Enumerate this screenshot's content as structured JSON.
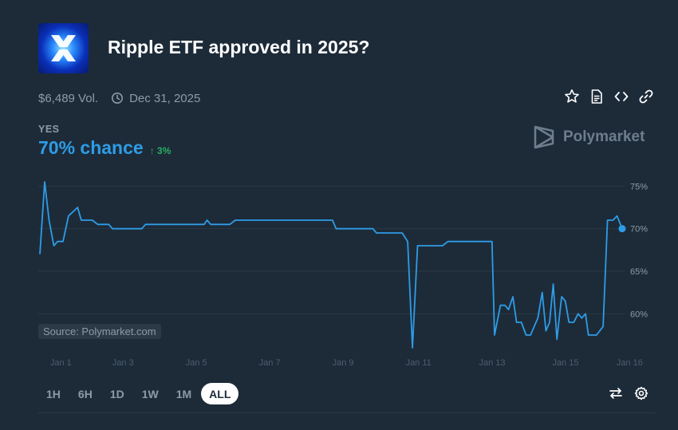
{
  "market": {
    "title": "Ripple ETF approved in 2025?",
    "volume": "$6,489 Vol.",
    "end_date": "Dec 31, 2025",
    "outcome_label": "YES",
    "chance_text": "70% chance",
    "change_text": "3%",
    "change_direction": "up"
  },
  "brand": {
    "name": "Polymarket"
  },
  "icons": {
    "logo": "ripple-xrp-logo",
    "actions": [
      "star-icon",
      "document-icon",
      "embed-code-icon",
      "link-icon"
    ],
    "tools": [
      "swap-arrows-icon",
      "gear-icon"
    ]
  },
  "colors": {
    "background": "#1d2b39",
    "line": "#2e9ce6",
    "positive": "#27ae60",
    "muted": "#8e9aa6",
    "grid": "#2c3a48"
  },
  "chart_data": {
    "type": "line",
    "title": "",
    "xlabel": "",
    "ylabel": "",
    "y_unit": "%",
    "xlim": [
      "Dec 31",
      "Jan 16"
    ],
    "ylim": [
      56,
      75.5
    ],
    "y_ticks": [
      60,
      65,
      70,
      75
    ],
    "y_tick_labels": [
      "60%",
      "65%",
      "70%",
      "75%"
    ],
    "x_ticks": [
      "Jan 1",
      "Jan 3",
      "Jan 5",
      "Jan 7",
      "Jan 9",
      "Jan 11",
      "Jan 13",
      "Jan 15",
      "Jan 16"
    ],
    "x_tick_days": [
      1,
      3,
      5,
      7,
      9,
      11,
      13,
      15,
      16.75
    ],
    "grid": true,
    "legend": "none",
    "source_text": "Source: Polymarket.com",
    "series": [
      {
        "values": [
          [
            0.72,
            67
          ],
          [
            0.85,
            75.5
          ],
          [
            0.97,
            71
          ],
          [
            1.1,
            68
          ],
          [
            1.2,
            68.5
          ],
          [
            1.35,
            68.5
          ],
          [
            1.5,
            71.5
          ],
          [
            1.75,
            72.5
          ],
          [
            1.85,
            71
          ],
          [
            2.15,
            71
          ],
          [
            2.3,
            70.5
          ],
          [
            2.6,
            70.5
          ],
          [
            2.7,
            70
          ],
          [
            3.5,
            70
          ],
          [
            3.6,
            70.5
          ],
          [
            5.2,
            70.5
          ],
          [
            5.28,
            71
          ],
          [
            5.38,
            70.5
          ],
          [
            5.9,
            70.5
          ],
          [
            6.05,
            71
          ],
          [
            8.7,
            71
          ],
          [
            8.8,
            70
          ],
          [
            9.8,
            70
          ],
          [
            9.9,
            69.5
          ],
          [
            10.6,
            69.5
          ],
          [
            10.75,
            68.5
          ],
          [
            10.88,
            56
          ],
          [
            11.02,
            68
          ],
          [
            11.7,
            68
          ],
          [
            11.85,
            68.5
          ],
          [
            13.05,
            68.5
          ],
          [
            13.12,
            57.5
          ],
          [
            13.28,
            61
          ],
          [
            13.4,
            61
          ],
          [
            13.5,
            60.5
          ],
          [
            13.62,
            62
          ],
          [
            13.72,
            59
          ],
          [
            13.85,
            59
          ],
          [
            13.98,
            57.5
          ],
          [
            14.1,
            57.5
          ],
          [
            14.3,
            59.5
          ],
          [
            14.42,
            62.5
          ],
          [
            14.52,
            58
          ],
          [
            14.62,
            59
          ],
          [
            14.72,
            63.5
          ],
          [
            14.82,
            57
          ],
          [
            14.95,
            62
          ],
          [
            15.05,
            61.5
          ],
          [
            15.15,
            59
          ],
          [
            15.28,
            59
          ],
          [
            15.4,
            60
          ],
          [
            15.5,
            59.5
          ],
          [
            15.6,
            60
          ],
          [
            15.68,
            57.5
          ],
          [
            15.9,
            57.5
          ],
          [
            16.08,
            58.5
          ],
          [
            16.2,
            71
          ],
          [
            16.35,
            71
          ],
          [
            16.46,
            71.5
          ],
          [
            16.6,
            70
          ]
        ]
      }
    ]
  },
  "time_ranges": [
    "1H",
    "6H",
    "1D",
    "1W",
    "1M",
    "ALL"
  ],
  "active_range": "ALL"
}
